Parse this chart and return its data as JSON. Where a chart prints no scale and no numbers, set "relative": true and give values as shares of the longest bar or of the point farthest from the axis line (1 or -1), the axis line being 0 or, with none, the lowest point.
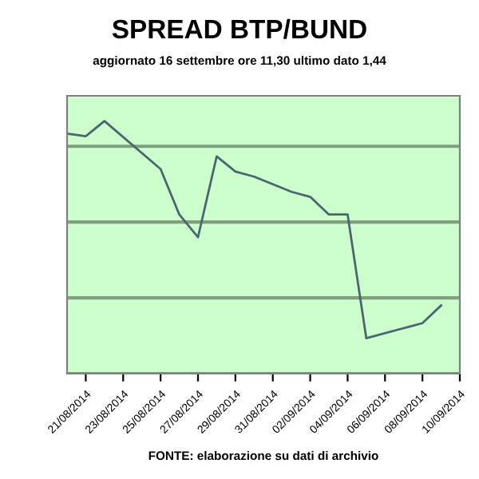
{
  "chart_data": {
    "type": "line",
    "title": "SPREAD BTP/BUND",
    "subtitle": "aggiornato 16 settembre ore 11,30 ultimo dato 1,44",
    "relative": true,
    "grid": "y",
    "color": "#4a6670",
    "x": [
      "2014-08-20",
      "2014-08-21",
      "2014-08-22",
      "2014-08-25",
      "2014-08-26",
      "2014-08-27",
      "2014-08-28",
      "2014-08-29",
      "2014-08-30",
      "2014-09-01",
      "2014-09-02",
      "2014-09-03",
      "2014-09-04",
      "2014-09-05",
      "2014-09-08",
      "2014-09-09"
    ],
    "values": [
      0.95,
      0.94,
      1.0,
      0.81,
      0.63,
      0.54,
      0.86,
      0.8,
      0.78,
      0.72,
      0.7,
      0.63,
      0.63,
      0.14,
      0.2,
      0.27
    ],
    "xlim": [
      "2014-08-20",
      "2014-09-10"
    ],
    "xticks": [
      {
        "value": "2014-08-21",
        "label": "21/08/2014"
      },
      {
        "value": "2014-08-23",
        "label": "23/08/2014"
      },
      {
        "value": "2014-08-25",
        "label": "25/08/2014"
      },
      {
        "value": "2014-08-27",
        "label": "27/08/2014"
      },
      {
        "value": "2014-08-29",
        "label": "29/08/2014"
      },
      {
        "value": "2014-08-31",
        "label": "31/08/2014"
      },
      {
        "value": "2014-09-02",
        "label": "02/09/2014"
      },
      {
        "value": "2014-09-04",
        "label": "04/09/2014"
      },
      {
        "value": "2014-09-06",
        "label": "06/09/2014"
      },
      {
        "value": "2014-09-08",
        "label": "08/09/2014"
      },
      {
        "value": "2014-09-10",
        "label": "10/09/2014"
      }
    ],
    "annotations": [
      "FONTE: elaborazione su dati di archivio"
    ]
  }
}
